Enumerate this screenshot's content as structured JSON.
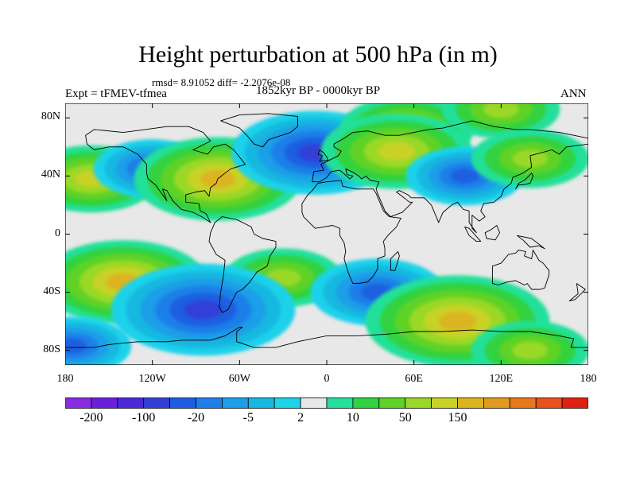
{
  "title": "Height perturbation at 500 hPa (in m)",
  "stats": "rmsd= 8.91052 diff= -2.2076e-08",
  "expt": "Expt = tFMEV-tfmea",
  "period": "1852kyr BP - 0000kyr BP",
  "season": "ANN",
  "colors": {
    "ocean": "#e8e8e8",
    "coast": "#000000",
    "frame": "#000000"
  },
  "map": {
    "lon_range": [
      -180,
      180
    ],
    "lat_range": [
      -90,
      90
    ],
    "lat_ticks": [
      {
        "value": 80,
        "label": "80N"
      },
      {
        "value": 40,
        "label": "40N"
      },
      {
        "value": 0,
        "label": "0"
      },
      {
        "value": -40,
        "label": "40S"
      },
      {
        "value": -80,
        "label": "80S"
      }
    ],
    "lon_ticks": [
      {
        "value": -180,
        "label": "180"
      },
      {
        "value": -120,
        "label": "120W"
      },
      {
        "value": -60,
        "label": "60W"
      },
      {
        "value": 0,
        "label": "0"
      },
      {
        "value": 60,
        "label": "60E"
      },
      {
        "value": 120,
        "label": "120E"
      },
      {
        "value": 180,
        "label": "180"
      }
    ]
  },
  "colorbar": {
    "colors": [
      "#8a2be2",
      "#6a1fd8",
      "#4b2ad6",
      "#3340d8",
      "#1d5ee0",
      "#1e7fe8",
      "#1e9ee8",
      "#14b8e0",
      "#1ed2ea",
      "#e8e8e8",
      "#24e09a",
      "#30d240",
      "#5ed228",
      "#9ad828",
      "#c8d228",
      "#dcb420",
      "#e09a20",
      "#e8781c",
      "#e8501c",
      "#e02010"
    ],
    "labels": [
      {
        "boundary": 1,
        "text": "-200"
      },
      {
        "boundary": 3,
        "text": "-100"
      },
      {
        "boundary": 5,
        "text": "-20"
      },
      {
        "boundary": 7,
        "text": "-5"
      },
      {
        "boundary": 9,
        "text": "2"
      },
      {
        "boundary": 11,
        "text": "10"
      },
      {
        "boundary": 13,
        "text": "50"
      },
      {
        "boundary": 15,
        "text": "150"
      }
    ]
  },
  "anomalies": [
    {
      "name": "n-pacific-high",
      "lon": -162,
      "lat": 38,
      "value": 30
    },
    {
      "name": "n-america-low",
      "lon": -120,
      "lat": 45,
      "value": -20
    },
    {
      "name": "n-atlantic-high",
      "lon": -75,
      "lat": 38,
      "value": 50
    },
    {
      "name": "north-atlantic-low",
      "lon": -8,
      "lat": 56,
      "value": -50
    },
    {
      "name": "arctic-russia-high",
      "lon": 55,
      "lat": 72,
      "value": 30
    },
    {
      "name": "ural-high",
      "lon": 48,
      "lat": 57,
      "value": 40
    },
    {
      "name": "asia-low",
      "lon": 95,
      "lat": 40,
      "value": -20
    },
    {
      "name": "arctic-high",
      "lon": 120,
      "lat": 86,
      "value": 20
    },
    {
      "name": "japan-high",
      "lon": 140,
      "lat": 52,
      "value": 20
    },
    {
      "name": "s-pacific-high",
      "lon": -140,
      "lat": -33,
      "value": 50
    },
    {
      "name": "s-america-high",
      "lon": -30,
      "lat": -30,
      "value": 20
    },
    {
      "name": "s-pacific-low",
      "lon": -85,
      "lat": -52,
      "value": -60
    },
    {
      "name": "s-atlantic-low",
      "lon": 35,
      "lat": -40,
      "value": -30
    },
    {
      "name": "s-indian-high",
      "lon": 90,
      "lat": -60,
      "value": 60
    },
    {
      "name": "antarctic-low",
      "lon": -175,
      "lat": -77,
      "value": -20
    },
    {
      "name": "antarctic-high",
      "lon": 140,
      "lat": -80,
      "value": 20
    }
  ],
  "land": [
    {
      "name": "north-america",
      "points": [
        [
          -166,
          68
        ],
        [
          -160,
          72
        ],
        [
          -140,
          70
        ],
        [
          -125,
          72
        ],
        [
          -110,
          74
        ],
        [
          -95,
          74
        ],
        [
          -85,
          70
        ],
        [
          -80,
          64
        ],
        [
          -92,
          58
        ],
        [
          -82,
          55
        ],
        [
          -78,
          60
        ],
        [
          -70,
          62
        ],
        [
          -64,
          58
        ],
        [
          -60,
          53
        ],
        [
          -56,
          48
        ],
        [
          -66,
          45
        ],
        [
          -70,
          42
        ],
        [
          -75,
          38
        ],
        [
          -76,
          35
        ],
        [
          -80,
          32
        ],
        [
          -81,
          26
        ],
        [
          -84,
          30
        ],
        [
          -90,
          29
        ],
        [
          -97,
          27
        ],
        [
          -97,
          22
        ],
        [
          -88,
          21
        ],
        [
          -87,
          16
        ],
        [
          -83,
          14
        ],
        [
          -80,
          8
        ],
        [
          -86,
          12
        ],
        [
          -92,
          15
        ],
        [
          -100,
          17
        ],
        [
          -106,
          23
        ],
        [
          -110,
          30
        ],
        [
          -113,
          31
        ],
        [
          -110,
          23
        ],
        [
          -115,
          30
        ],
        [
          -118,
          34
        ],
        [
          -123,
          38
        ],
        [
          -124,
          42
        ],
        [
          -124,
          48
        ],
        [
          -130,
          55
        ],
        [
          -140,
          60
        ],
        [
          -150,
          60
        ],
        [
          -160,
          58
        ],
        [
          -165,
          62
        ]
      ]
    },
    {
      "name": "south-america",
      "points": [
        [
          -77,
          8
        ],
        [
          -72,
          12
        ],
        [
          -62,
          10
        ],
        [
          -52,
          5
        ],
        [
          -50,
          0
        ],
        [
          -44,
          -3
        ],
        [
          -35,
          -5
        ],
        [
          -35,
          -9
        ],
        [
          -39,
          -15
        ],
        [
          -41,
          -22
        ],
        [
          -48,
          -26
        ],
        [
          -53,
          -33
        ],
        [
          -58,
          -38
        ],
        [
          -62,
          -40
        ],
        [
          -65,
          -46
        ],
        [
          -68,
          -52
        ],
        [
          -72,
          -54
        ],
        [
          -74,
          -50
        ],
        [
          -73,
          -40
        ],
        [
          -71,
          -28
        ],
        [
          -70,
          -18
        ],
        [
          -76,
          -14
        ],
        [
          -81,
          -5
        ],
        [
          -80,
          1
        ]
      ]
    },
    {
      "name": "greenland",
      "points": [
        [
          -73,
          78
        ],
        [
          -60,
          82
        ],
        [
          -40,
          83
        ],
        [
          -20,
          81
        ],
        [
          -20,
          74
        ],
        [
          -25,
          70
        ],
        [
          -40,
          65
        ],
        [
          -44,
          60
        ],
        [
          -50,
          62
        ],
        [
          -55,
          68
        ],
        [
          -60,
          73
        ]
      ]
    },
    {
      "name": "eurasia",
      "points": [
        [
          -10,
          36
        ],
        [
          -9,
          43
        ],
        [
          -2,
          44
        ],
        [
          -4,
          48
        ],
        [
          2,
          51
        ],
        [
          8,
          54
        ],
        [
          10,
          57
        ],
        [
          5,
          60
        ],
        [
          5,
          62
        ],
        [
          12,
          66
        ],
        [
          18,
          70
        ],
        [
          28,
          71
        ],
        [
          40,
          68
        ],
        [
          50,
          68
        ],
        [
          60,
          70
        ],
        [
          70,
          72
        ],
        [
          80,
          73
        ],
        [
          100,
          78
        ],
        [
          115,
          74
        ],
        [
          130,
          72
        ],
        [
          140,
          72
        ],
        [
          160,
          70
        ],
        [
          170,
          68
        ],
        [
          180,
          66
        ],
        [
          180,
          62
        ],
        [
          165,
          60
        ],
        [
          160,
          55
        ],
        [
          155,
          58
        ],
        [
          140,
          54
        ],
        [
          141,
          46
        ],
        [
          135,
          42
        ],
        [
          128,
          39
        ],
        [
          127,
          35
        ],
        [
          122,
          31
        ],
        [
          120,
          26
        ],
        [
          115,
          22
        ],
        [
          108,
          21
        ],
        [
          106,
          16
        ],
        [
          109,
          12
        ],
        [
          105,
          9
        ],
        [
          100,
          13
        ],
        [
          100,
          4
        ],
        [
          103,
          1
        ],
        [
          98,
          8
        ],
        [
          98,
          16
        ],
        [
          94,
          17
        ],
        [
          90,
          22
        ],
        [
          86,
          20
        ],
        [
          80,
          15
        ],
        [
          77,
          8
        ],
        [
          72,
          20
        ],
        [
          67,
          25
        ],
        [
          58,
          25
        ],
        [
          56,
          27
        ],
        [
          50,
          30
        ],
        [
          48,
          29
        ],
        [
          57,
          22
        ],
        [
          59,
          22
        ],
        [
          52,
          15
        ],
        [
          44,
          12
        ],
        [
          40,
          16
        ],
        [
          35,
          28
        ],
        [
          34,
          31
        ],
        [
          36,
          36
        ],
        [
          30,
          37
        ],
        [
          27,
          40
        ],
        [
          24,
          38
        ],
        [
          22,
          40
        ],
        [
          19,
          42
        ],
        [
          13,
          45
        ],
        [
          14,
          41
        ],
        [
          18,
          40
        ],
        [
          16,
          38
        ],
        [
          9,
          44
        ],
        [
          3,
          43
        ],
        [
          0,
          39
        ],
        [
          -5,
          36
        ]
      ]
    },
    {
      "name": "africa",
      "points": [
        [
          -17,
          21
        ],
        [
          -17,
          15
        ],
        [
          -16,
          12
        ],
        [
          -12,
          8
        ],
        [
          -8,
          4
        ],
        [
          -2,
          5
        ],
        [
          4,
          6
        ],
        [
          9,
          4
        ],
        [
          9,
          -1
        ],
        [
          12,
          -6
        ],
        [
          13,
          -12
        ],
        [
          12,
          -17
        ],
        [
          15,
          -27
        ],
        [
          18,
          -34
        ],
        [
          22,
          -34
        ],
        [
          28,
          -33
        ],
        [
          32,
          -29
        ],
        [
          35,
          -24
        ],
        [
          35,
          -17
        ],
        [
          40,
          -15
        ],
        [
          40,
          -10
        ],
        [
          39,
          -5
        ],
        [
          42,
          -1
        ],
        [
          48,
          5
        ],
        [
          51,
          11
        ],
        [
          43,
          12
        ],
        [
          39,
          16
        ],
        [
          34,
          28
        ],
        [
          32,
          31
        ],
        [
          20,
          31
        ],
        [
          11,
          33
        ],
        [
          10,
          37
        ],
        [
          0,
          36
        ],
        [
          -6,
          35
        ],
        [
          -10,
          30
        ],
        [
          -13,
          27
        ]
      ]
    },
    {
      "name": "madagascar",
      "points": [
        [
          44,
          -25
        ],
        [
          47,
          -25
        ],
        [
          50,
          -15
        ],
        [
          49,
          -12
        ],
        [
          44,
          -17
        ]
      ]
    },
    {
      "name": "australia",
      "points": [
        [
          114,
          -22
        ],
        [
          114,
          -34
        ],
        [
          118,
          -35
        ],
        [
          124,
          -33
        ],
        [
          130,
          -32
        ],
        [
          136,
          -35
        ],
        [
          138,
          -34
        ],
        [
          141,
          -38
        ],
        [
          147,
          -38
        ],
        [
          150,
          -37
        ],
        [
          153,
          -28
        ],
        [
          153,
          -25
        ],
        [
          149,
          -20
        ],
        [
          146,
          -18
        ],
        [
          142,
          -11
        ],
        [
          141,
          -17
        ],
        [
          136,
          -15
        ],
        [
          137,
          -12
        ],
        [
          132,
          -11
        ],
        [
          130,
          -13
        ],
        [
          125,
          -14
        ],
        [
          120,
          -20
        ]
      ]
    },
    {
      "name": "antarctica",
      "points": [
        [
          -180,
          -78
        ],
        [
          -160,
          -78
        ],
        [
          -150,
          -76
        ],
        [
          -130,
          -74
        ],
        [
          -110,
          -74
        ],
        [
          -100,
          -73
        ],
        [
          -80,
          -73
        ],
        [
          -70,
          -70
        ],
        [
          -60,
          -64
        ],
        [
          -58,
          -64
        ],
        [
          -62,
          -67
        ],
        [
          -62,
          -74
        ],
        [
          -50,
          -78
        ],
        [
          -35,
          -78
        ],
        [
          -20,
          -74
        ],
        [
          0,
          -70
        ],
        [
          20,
          -70
        ],
        [
          40,
          -69
        ],
        [
          60,
          -67
        ],
        [
          80,
          -67
        ],
        [
          100,
          -66
        ],
        [
          120,
          -67
        ],
        [
          140,
          -67
        ],
        [
          160,
          -70
        ],
        [
          170,
          -72
        ],
        [
          168,
          -78
        ],
        [
          180,
          -78
        ],
        [
          180,
          -90
        ],
        [
          -180,
          -90
        ]
      ]
    },
    {
      "name": "uk",
      "points": [
        [
          -5,
          50
        ],
        [
          1,
          51
        ],
        [
          0,
          53
        ],
        [
          -2,
          56
        ],
        [
          -5,
          58
        ],
        [
          -6,
          55
        ],
        [
          -3,
          54
        ]
      ]
    },
    {
      "name": "japan",
      "points": [
        [
          130,
          31
        ],
        [
          132,
          34
        ],
        [
          135,
          34
        ],
        [
          140,
          35
        ],
        [
          142,
          40
        ],
        [
          141,
          42
        ],
        [
          139,
          40
        ],
        [
          136,
          37
        ],
        [
          132,
          35
        ]
      ]
    },
    {
      "name": "borneo",
      "points": [
        [
          109,
          1
        ],
        [
          110,
          -3
        ],
        [
          116,
          -4
        ],
        [
          119,
          1
        ],
        [
          117,
          6
        ],
        [
          113,
          3
        ]
      ]
    },
    {
      "name": "sumatra",
      "points": [
        [
          95,
          5
        ],
        [
          98,
          4
        ],
        [
          106,
          -5
        ],
        [
          103,
          -5
        ],
        [
          98,
          -1
        ]
      ]
    },
    {
      "name": "new-guinea",
      "points": [
        [
          131,
          -1
        ],
        [
          141,
          -3
        ],
        [
          150,
          -10
        ],
        [
          146,
          -8
        ],
        [
          140,
          -9
        ],
        [
          135,
          -4
        ]
      ]
    },
    {
      "name": "new-zealand",
      "points": [
        [
          172,
          -34
        ],
        [
          178,
          -38
        ],
        [
          175,
          -41
        ],
        [
          171,
          -45
        ],
        [
          167,
          -46
        ],
        [
          173,
          -41
        ]
      ]
    }
  ]
}
